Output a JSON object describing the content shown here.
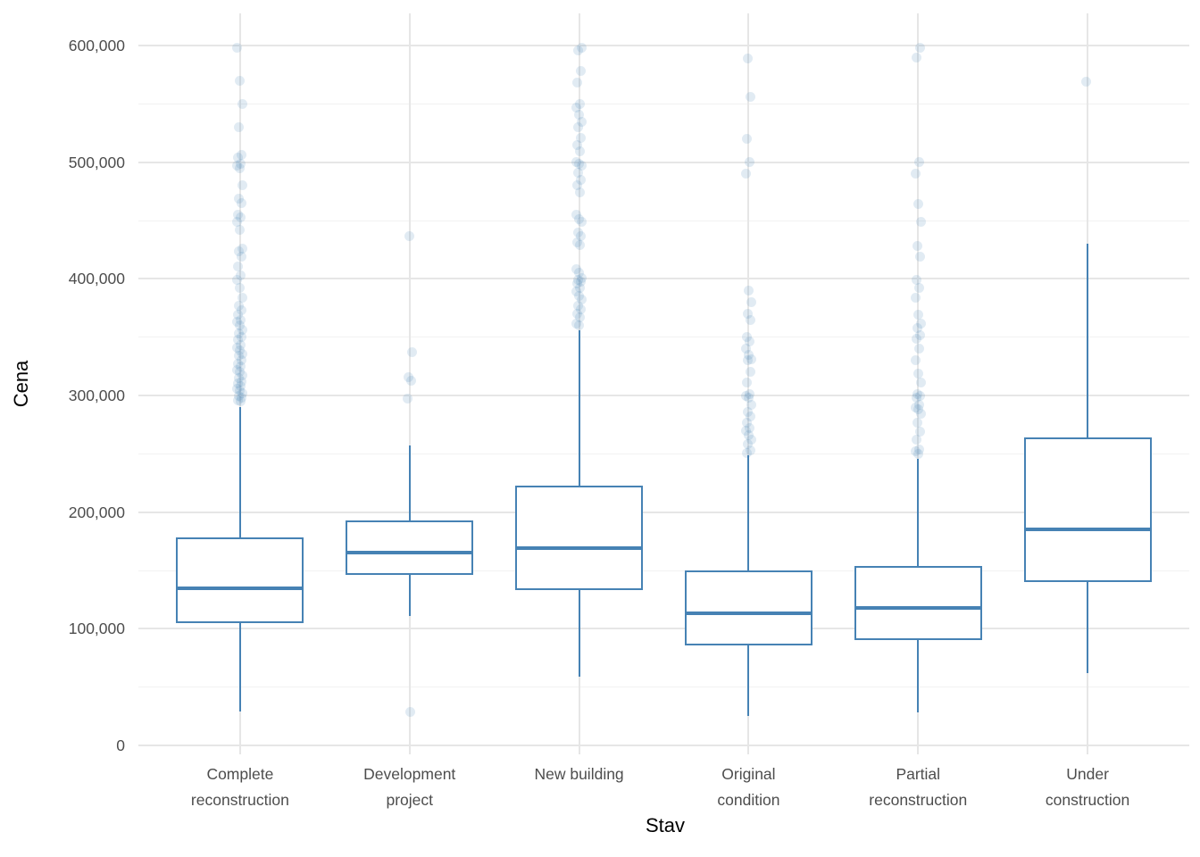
{
  "axes": {
    "x_title": "Stav",
    "y_title": "Cena"
  },
  "chart_data": {
    "type": "boxplot",
    "title": "",
    "xlabel": "Stav",
    "ylabel": "Cena",
    "categories": [
      "Complete reconstruction",
      "Development project",
      "New building",
      "Original condition",
      "Partial reconstruction",
      "Under construction"
    ],
    "x_tick_label_lines": [
      [
        "Complete",
        "reconstruction"
      ],
      [
        "Development",
        "project"
      ],
      [
        "New building"
      ],
      [
        "Original",
        "condition"
      ],
      [
        "Partial",
        "reconstruction"
      ],
      [
        "Under",
        "construction"
      ]
    ],
    "y_ticks": [
      0,
      100000,
      200000,
      300000,
      400000,
      500000,
      600000
    ],
    "y_tick_labels": [
      "0",
      "100,000",
      "200,000",
      "300,000",
      "400,000",
      "500,000",
      "600,000"
    ],
    "y_minor_ticks": [
      50000,
      150000,
      250000,
      350000,
      450000,
      550000
    ],
    "ylim": [
      0,
      627000
    ],
    "grid": true,
    "legend": false,
    "boxes": [
      {
        "category": "Complete reconstruction",
        "whisker_low": 29000,
        "q1": 105000,
        "median": 135000,
        "q3": 178000,
        "whisker_high": 290000,
        "outliers": [
          598000,
          570000,
          550000,
          530000,
          506000,
          504000,
          499000,
          497000,
          495000,
          480000,
          469000,
          465000,
          455000,
          453000,
          449000,
          442000,
          426000,
          424000,
          419000,
          411000,
          403000,
          399000,
          392000,
          384000,
          377000,
          373000,
          369000,
          365000,
          363000,
          360000,
          356000,
          353000,
          350000,
          348000,
          343000,
          341000,
          339000,
          336000,
          334000,
          330000,
          327000,
          325000,
          322000,
          320000,
          317000,
          315000,
          312000,
          310000,
          308000,
          306000,
          304000,
          302000,
          300000,
          298000,
          296000,
          295000
        ]
      },
      {
        "category": "Development project",
        "whisker_low": 111000,
        "q1": 146000,
        "median": 165000,
        "q3": 193000,
        "whisker_high": 257000,
        "outliers": [
          437000,
          337000,
          316000,
          313000,
          297000,
          29000
        ]
      },
      {
        "category": "New building",
        "whisker_low": 59000,
        "q1": 133000,
        "median": 169000,
        "q3": 223000,
        "whisker_high": 356000,
        "outliers": [
          598000,
          596000,
          578000,
          568000,
          550000,
          547000,
          541000,
          535000,
          530000,
          521000,
          515000,
          509000,
          500000,
          499000,
          497000,
          491000,
          485000,
          480000,
          474000,
          455000,
          451000,
          449000,
          440000,
          437000,
          431000,
          429000,
          408000,
          405000,
          401000,
          399000,
          398000,
          396000,
          392000,
          389000,
          385000,
          382000,
          377000,
          374000,
          370000,
          367000,
          362000,
          360000
        ]
      },
      {
        "category": "Original condition",
        "whisker_low": 25000,
        "q1": 86000,
        "median": 113000,
        "q3": 150000,
        "whisker_high": 249000,
        "outliers": [
          589000,
          556000,
          520000,
          500000,
          490000,
          390000,
          380000,
          370000,
          365000,
          350000,
          346000,
          340000,
          335000,
          331000,
          330000,
          320000,
          311000,
          301000,
          300000,
          298000,
          292000,
          286000,
          282000,
          277000,
          272000,
          270000,
          266000,
          262000,
          258000,
          253000,
          251000
        ]
      },
      {
        "category": "Partial reconstruction",
        "whisker_low": 28000,
        "q1": 90000,
        "median": 118000,
        "q3": 154000,
        "whisker_high": 246000,
        "outliers": [
          598000,
          590000,
          500000,
          490000,
          464000,
          449000,
          428000,
          419000,
          399000,
          392000,
          384000,
          369000,
          362000,
          358000,
          352000,
          349000,
          340000,
          330000,
          319000,
          311000,
          301000,
          300000,
          298000,
          292000,
          290000,
          288000,
          284000,
          277000,
          269000,
          262000,
          254000,
          252000,
          250000
        ]
      },
      {
        "category": "Under construction",
        "whisker_low": 62000,
        "q1": 140000,
        "median": 185000,
        "q3": 264000,
        "whisker_high": 430000,
        "outliers": [
          569000
        ]
      }
    ]
  },
  "colors": {
    "box_stroke": "#4682b4",
    "point_fill_rgb": "70,130,180",
    "point_alpha": 0.16,
    "grid_major": "#e6e6e6",
    "grid_minor": "#f2f2f2",
    "tick_label": "#4d4d4d",
    "axis_title": "#000000",
    "background": "#ffffff"
  }
}
